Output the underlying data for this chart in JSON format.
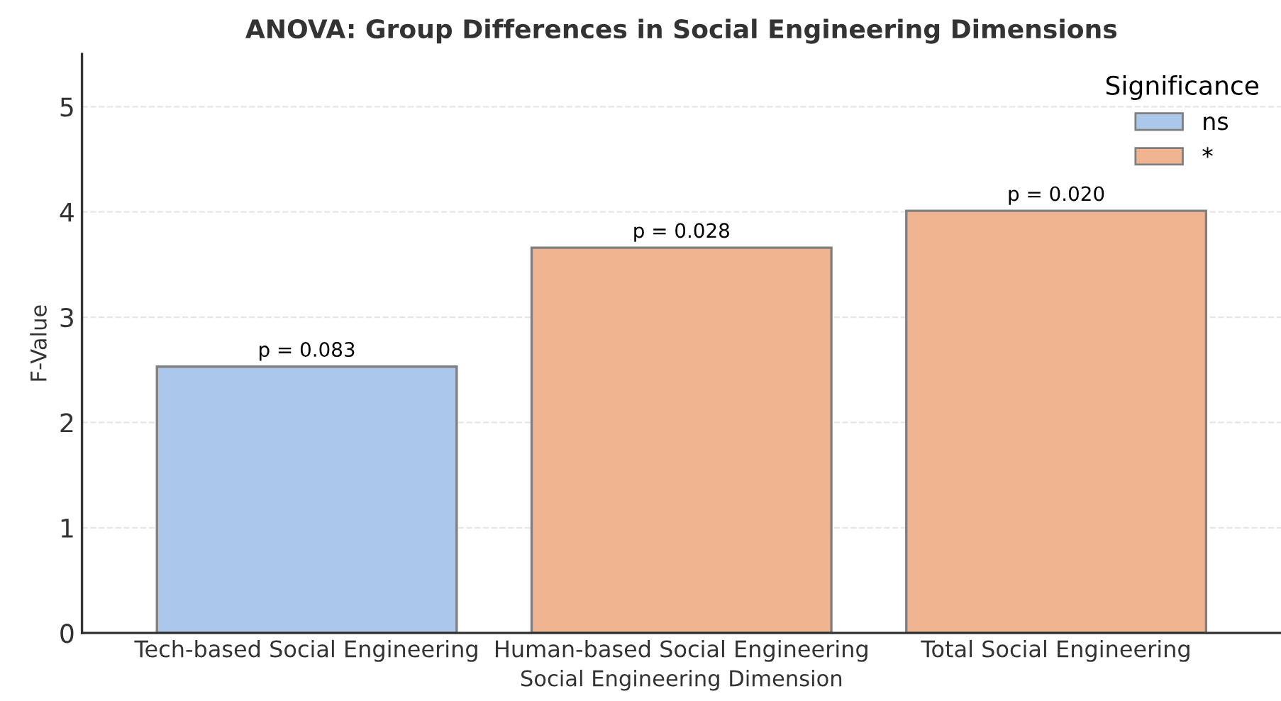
{
  "chart_data": {
    "type": "bar",
    "title": "ANOVA: Group Differences in Social Engineering Dimensions",
    "xlabel": "Social Engineering Dimension",
    "ylabel": "F-Value",
    "legend_title": "Significance",
    "categories": [
      "Tech-based Social Engineering",
      "Human-based Social Engineering",
      "Total Social Engineering"
    ],
    "series": [
      {
        "name": "ns",
        "color": "#abc8eb",
        "values": [
          2.53,
          null,
          null
        ]
      },
      {
        "name": "*",
        "color": "#f0b590",
        "values": [
          null,
          3.66,
          4.01
        ]
      }
    ],
    "annotations": [
      {
        "text": "p = 0.083",
        "x": "Tech-based Social Engineering",
        "y": 2.53
      },
      {
        "text": "p = 0.028",
        "x": "Human-based Social Engineering",
        "y": 3.66
      },
      {
        "text": "p = 0.020",
        "x": "Total Social Engineering",
        "y": 4.01
      }
    ],
    "ylim": [
      0,
      5.5
    ],
    "yticks": [
      0,
      1,
      2,
      3,
      4,
      5
    ],
    "grid": "y",
    "legend": "top right"
  }
}
